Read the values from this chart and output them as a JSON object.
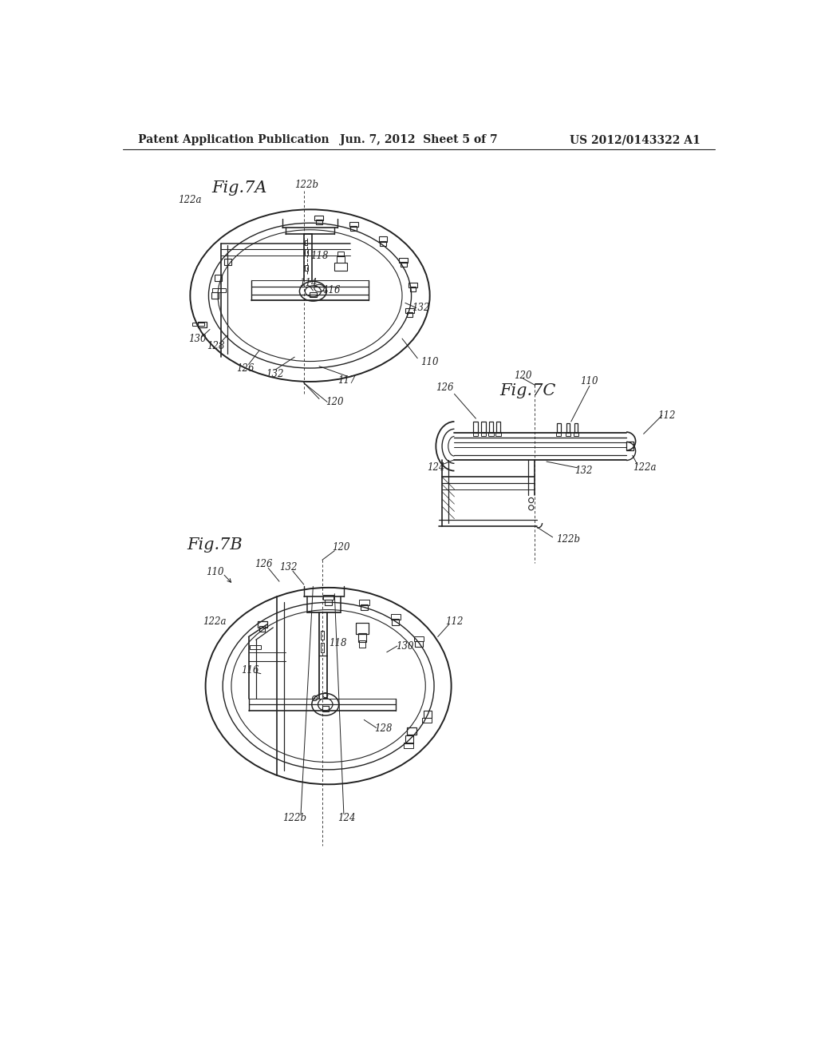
{
  "background_color": "#ffffff",
  "header_left": "Patent Application Publication",
  "header_center": "Jun. 7, 2012  Sheet 5 of 7",
  "header_right": "US 2012/0143322 A1",
  "line_color": "#222222",
  "text_color": "#222222",
  "label_fontsize": 8.5,
  "fig_label_fontsize": 15,
  "header_fontsize": 10
}
